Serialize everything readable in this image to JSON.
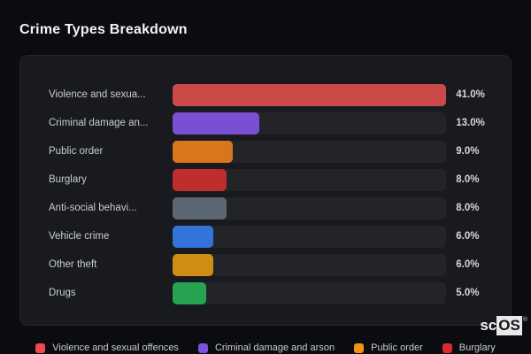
{
  "page": {
    "title": "Crime Types Breakdown",
    "background_color": "#0b0c10",
    "card_color": "#191a1f",
    "track_color": "#232428"
  },
  "logo": {
    "prefix": "sc",
    "suffix": "OS",
    "registered": "®"
  },
  "chart_data": {
    "type": "bar",
    "orientation": "horizontal",
    "title": "Crime Types Breakdown",
    "categories": [
      "Violence and sexua...",
      "Criminal damage an...",
      "Public order",
      "Burglary",
      "Anti-social behavi...",
      "Vehicle crime",
      "Other theft",
      "Drugs"
    ],
    "values": [
      41.0,
      13.0,
      9.0,
      8.0,
      8.0,
      6.0,
      6.0,
      5.0
    ],
    "value_labels": [
      "41.0%",
      "13.0%",
      "9.0%",
      "8.0%",
      "8.0%",
      "6.0%",
      "6.0%",
      "5.0%"
    ],
    "bar_colors": [
      "#cb4a47",
      "#7a4fd3",
      "#d9751c",
      "#c02d2f",
      "#5c6775",
      "#3473da",
      "#cf8d13",
      "#27a251"
    ],
    "max_value": 41.0,
    "grid": false,
    "legend_position": "bottom"
  },
  "legend": {
    "items": [
      {
        "label": "Violence and sexual offences",
        "color": "#ef4a50"
      },
      {
        "label": "Criminal damage and arson",
        "color": "#7c52d9"
      },
      {
        "label": "Public order",
        "color": "#f3920f"
      },
      {
        "label": "Burglary",
        "color": "#d92b31"
      }
    ]
  }
}
